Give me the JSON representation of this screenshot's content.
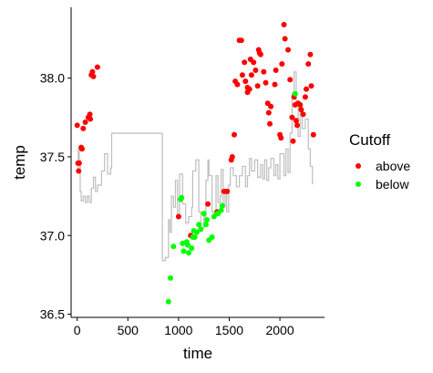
{
  "chart_data": {
    "type": "scatter",
    "xlabel": "time",
    "ylabel": "temp",
    "xlim": [
      -60,
      2440
    ],
    "ylim": [
      36.48,
      38.45
    ],
    "x_ticks": [
      0,
      500,
      1000,
      1500,
      2000
    ],
    "x_tick_labels": [
      "0",
      "500",
      "1000",
      "1500",
      "2000"
    ],
    "y_ticks": [
      36.5,
      37.0,
      37.5,
      38.0
    ],
    "y_tick_labels": [
      "36.5",
      "37.0",
      "37.5",
      "38.0"
    ],
    "grid": false,
    "legend": {
      "title": "Cutoff",
      "position": "right",
      "entries": [
        {
          "label": "above",
          "color": "#ff0000"
        },
        {
          "label": "below",
          "color": "#00ff00"
        }
      ]
    },
    "line_series": {
      "color": "#bebebe",
      "points": [
        [
          0,
          37.42
        ],
        [
          10,
          37.42
        ],
        [
          10,
          37.55
        ],
        [
          20,
          37.55
        ],
        [
          20,
          37.48
        ],
        [
          30,
          37.48
        ],
        [
          30,
          37.28
        ],
        [
          40,
          37.28
        ],
        [
          40,
          37.22
        ],
        [
          60,
          37.22
        ],
        [
          60,
          37.25
        ],
        [
          80,
          37.25
        ],
        [
          80,
          37.21
        ],
        [
          100,
          37.21
        ],
        [
          100,
          37.25
        ],
        [
          120,
          37.25
        ],
        [
          120,
          37.21
        ],
        [
          140,
          37.21
        ],
        [
          140,
          37.3
        ],
        [
          160,
          37.3
        ],
        [
          160,
          37.37
        ],
        [
          180,
          37.37
        ],
        [
          180,
          37.28
        ],
        [
          200,
          37.28
        ],
        [
          200,
          37.32
        ],
        [
          240,
          37.32
        ],
        [
          240,
          37.41
        ],
        [
          270,
          37.41
        ],
        [
          270,
          37.52
        ],
        [
          300,
          37.52
        ],
        [
          300,
          37.39
        ],
        [
          330,
          37.39
        ],
        [
          330,
          37.43
        ],
        [
          340,
          37.43
        ],
        [
          340,
          37.65
        ],
        [
          840,
          37.65
        ],
        [
          840,
          36.84
        ],
        [
          870,
          36.84
        ],
        [
          870,
          36.86
        ],
        [
          900,
          36.86
        ],
        [
          900,
          37.1
        ],
        [
          915,
          37.1
        ],
        [
          915,
          37.02
        ],
        [
          930,
          37.02
        ],
        [
          930,
          37.25
        ],
        [
          950,
          37.25
        ],
        [
          950,
          37.18
        ],
        [
          970,
          37.18
        ],
        [
          970,
          37.35
        ],
        [
          990,
          37.35
        ],
        [
          990,
          37.12
        ],
        [
          1010,
          37.12
        ],
        [
          1010,
          37.39
        ],
        [
          1040,
          37.39
        ],
        [
          1040,
          37.2
        ],
        [
          1070,
          37.2
        ],
        [
          1070,
          37.08
        ],
        [
          1100,
          37.08
        ],
        [
          1100,
          37.12
        ],
        [
          1130,
          37.12
        ],
        [
          1130,
          37.18
        ],
        [
          1140,
          37.18
        ],
        [
          1140,
          37.41
        ],
        [
          1170,
          37.41
        ],
        [
          1170,
          37.48
        ],
        [
          1200,
          37.48
        ],
        [
          1200,
          37.15
        ],
        [
          1220,
          37.15
        ],
        [
          1220,
          37.05
        ],
        [
          1250,
          37.05
        ],
        [
          1250,
          37.12
        ],
        [
          1270,
          37.12
        ],
        [
          1270,
          37.35
        ],
        [
          1290,
          37.35
        ],
        [
          1290,
          37.48
        ],
        [
          1300,
          37.48
        ],
        [
          1300,
          37.38
        ],
        [
          1330,
          37.38
        ],
        [
          1330,
          37.15
        ],
        [
          1350,
          37.15
        ],
        [
          1350,
          37.12
        ],
        [
          1370,
          37.12
        ],
        [
          1370,
          37.38
        ],
        [
          1390,
          37.38
        ],
        [
          1390,
          37.21
        ],
        [
          1410,
          37.21
        ],
        [
          1410,
          37.25
        ],
        [
          1420,
          37.25
        ],
        [
          1420,
          37.42
        ],
        [
          1440,
          37.42
        ],
        [
          1440,
          37.18
        ],
        [
          1460,
          37.18
        ],
        [
          1460,
          37.27
        ],
        [
          1475,
          37.27
        ],
        [
          1475,
          37.15
        ],
        [
          1495,
          37.15
        ],
        [
          1495,
          37.32
        ],
        [
          1510,
          37.32
        ],
        [
          1510,
          37.43
        ],
        [
          1540,
          37.43
        ],
        [
          1540,
          37.38
        ],
        [
          1570,
          37.38
        ],
        [
          1570,
          37.31
        ],
        [
          1600,
          37.31
        ],
        [
          1600,
          37.38
        ],
        [
          1630,
          37.38
        ],
        [
          1630,
          37.44
        ],
        [
          1660,
          37.44
        ],
        [
          1660,
          37.31
        ],
        [
          1680,
          37.31
        ],
        [
          1680,
          37.38
        ],
        [
          1700,
          37.38
        ],
        [
          1700,
          37.49
        ],
        [
          1720,
          37.49
        ],
        [
          1720,
          37.41
        ],
        [
          1750,
          37.41
        ],
        [
          1750,
          37.48
        ],
        [
          1780,
          37.48
        ],
        [
          1780,
          37.37
        ],
        [
          1810,
          37.37
        ],
        [
          1810,
          37.45
        ],
        [
          1830,
          37.45
        ],
        [
          1830,
          37.36
        ],
        [
          1850,
          37.36
        ],
        [
          1850,
          37.48
        ],
        [
          1870,
          37.48
        ],
        [
          1870,
          37.35
        ],
        [
          1890,
          37.35
        ],
        [
          1890,
          37.43
        ],
        [
          1910,
          37.43
        ],
        [
          1910,
          37.49
        ],
        [
          1940,
          37.49
        ],
        [
          1940,
          37.38
        ],
        [
          1960,
          37.38
        ],
        [
          1960,
          37.45
        ],
        [
          1980,
          37.45
        ],
        [
          1980,
          37.36
        ],
        [
          2000,
          37.36
        ],
        [
          2000,
          37.52
        ],
        [
          2040,
          37.52
        ],
        [
          2040,
          37.38
        ],
        [
          2060,
          37.38
        ],
        [
          2060,
          37.55
        ],
        [
          2080,
          37.55
        ],
        [
          2080,
          37.4
        ],
        [
          2100,
          37.4
        ],
        [
          2100,
          37.65
        ],
        [
          2120,
          37.65
        ],
        [
          2120,
          37.9
        ],
        [
          2140,
          37.9
        ],
        [
          2140,
          38.04
        ],
        [
          2160,
          38.04
        ],
        [
          2160,
          37.85
        ],
        [
          2180,
          37.85
        ],
        [
          2180,
          37.63
        ],
        [
          2200,
          37.63
        ],
        [
          2200,
          37.78
        ],
        [
          2220,
          37.78
        ],
        [
          2220,
          37.68
        ],
        [
          2250,
          37.68
        ],
        [
          2250,
          37.74
        ],
        [
          2280,
          37.74
        ],
        [
          2280,
          37.55
        ],
        [
          2300,
          37.55
        ],
        [
          2300,
          37.44
        ],
        [
          2320,
          37.44
        ],
        [
          2320,
          37.33
        ],
        [
          2330,
          37.33
        ]
      ]
    },
    "series": [
      {
        "name": "above",
        "color": "#ff0000",
        "points": [
          [
            0,
            37.7
          ],
          [
            8,
            37.46
          ],
          [
            15,
            37.41
          ],
          [
            20,
            37.46
          ],
          [
            40,
            37.56
          ],
          [
            48,
            37.55
          ],
          [
            60,
            37.68
          ],
          [
            80,
            37.72
          ],
          [
            110,
            37.75
          ],
          [
            125,
            37.77
          ],
          [
            130,
            37.74
          ],
          [
            140,
            38.02
          ],
          [
            150,
            38.04
          ],
          [
            160,
            38.01
          ],
          [
            200,
            38.07
          ],
          [
            1000,
            37.12
          ],
          [
            1120,
            37.0
          ],
          [
            1290,
            37.2
          ],
          [
            1380,
            37.15
          ],
          [
            1450,
            37.28
          ],
          [
            1480,
            37.28
          ],
          [
            1520,
            37.48
          ],
          [
            1530,
            37.5
          ],
          [
            1550,
            37.64
          ],
          [
            1560,
            37.98
          ],
          [
            1580,
            37.96
          ],
          [
            1600,
            38.24
          ],
          [
            1620,
            38.24
          ],
          [
            1630,
            38.02
          ],
          [
            1650,
            38.1
          ],
          [
            1660,
            37.98
          ],
          [
            1680,
            37.94
          ],
          [
            1680,
            37.91
          ],
          [
            1700,
            37.93
          ],
          [
            1710,
            38.12
          ],
          [
            1720,
            38.02
          ],
          [
            1740,
            38.1
          ],
          [
            1760,
            38.05
          ],
          [
            1780,
            37.95
          ],
          [
            1790,
            38.18
          ],
          [
            1800,
            38.16
          ],
          [
            1810,
            38.15
          ],
          [
            1840,
            38.04
          ],
          [
            1860,
            37.97
          ],
          [
            1880,
            37.84
          ],
          [
            1890,
            37.78
          ],
          [
            1900,
            37.71
          ],
          [
            1910,
            37.82
          ],
          [
            1950,
            37.96
          ],
          [
            1960,
            38.05
          ],
          [
            2000,
            37.64
          ],
          [
            2010,
            37.62
          ],
          [
            2020,
            38.09
          ],
          [
            2040,
            38.34
          ],
          [
            2050,
            38.25
          ],
          [
            2080,
            38.18
          ],
          [
            2100,
            37.99
          ],
          [
            2120,
            37.75
          ],
          [
            2130,
            37.6
          ],
          [
            2140,
            37.88
          ],
          [
            2150,
            37.83
          ],
          [
            2160,
            37.73
          ],
          [
            2170,
            37.7
          ],
          [
            2180,
            37.84
          ],
          [
            2200,
            37.83
          ],
          [
            2210,
            37.8
          ],
          [
            2230,
            37.77
          ],
          [
            2250,
            37.88
          ],
          [
            2260,
            37.93
          ],
          [
            2280,
            38.09
          ],
          [
            2300,
            38.15
          ],
          [
            2310,
            37.95
          ],
          [
            2330,
            37.64
          ]
        ]
      },
      {
        "name": "below",
        "color": "#00ff00",
        "points": [
          [
            900,
            36.58
          ],
          [
            920,
            36.73
          ],
          [
            950,
            36.93
          ],
          [
            1020,
            37.23
          ],
          [
            1030,
            37.24
          ],
          [
            1040,
            36.95
          ],
          [
            1050,
            36.9
          ],
          [
            1080,
            36.96
          ],
          [
            1090,
            36.94
          ],
          [
            1100,
            36.89
          ],
          [
            1130,
            36.92
          ],
          [
            1140,
            36.99
          ],
          [
            1150,
            37.03
          ],
          [
            1160,
            36.99
          ],
          [
            1180,
            37.02
          ],
          [
            1200,
            37.07
          ],
          [
            1220,
            37.04
          ],
          [
            1250,
            37.14
          ],
          [
            1270,
            37.07
          ],
          [
            1280,
            37.1
          ],
          [
            1300,
            36.97
          ],
          [
            1330,
            36.99
          ],
          [
            1350,
            37.12
          ],
          [
            1380,
            37.14
          ],
          [
            1390,
            37.14
          ],
          [
            1420,
            37.16
          ],
          [
            1430,
            37.19
          ],
          [
            2150,
            37.9
          ]
        ]
      }
    ]
  }
}
